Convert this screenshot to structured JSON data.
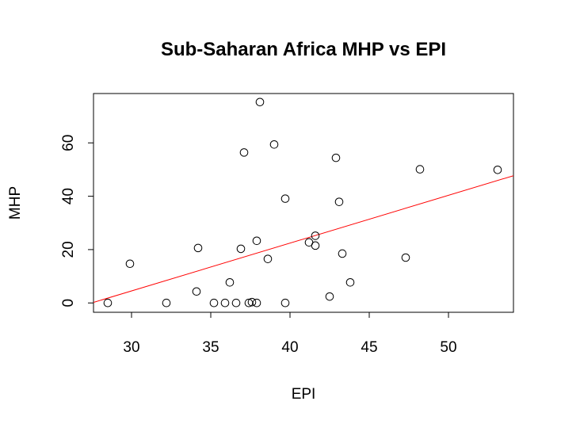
{
  "chart_data": {
    "type": "scatter",
    "title": "Sub-Saharan Africa MHP vs EPI",
    "xlabel": "EPI",
    "ylabel": "MHP",
    "xlim": [
      27.6,
      54.1
    ],
    "ylim": [
      -3.5,
      78.5
    ],
    "x_ticks": [
      "30",
      "35",
      "40",
      "45",
      "50"
    ],
    "y_ticks": [
      "0",
      "20",
      "40",
      "60"
    ],
    "grid": false,
    "points": [
      {
        "x": 28.5,
        "y": 0
      },
      {
        "x": 29.9,
        "y": 14.7
      },
      {
        "x": 32.2,
        "y": 0
      },
      {
        "x": 34.1,
        "y": 4.3
      },
      {
        "x": 34.2,
        "y": 20.6
      },
      {
        "x": 35.2,
        "y": 0
      },
      {
        "x": 35.9,
        "y": 0
      },
      {
        "x": 36.2,
        "y": 7.7
      },
      {
        "x": 36.6,
        "y": 0
      },
      {
        "x": 36.9,
        "y": 20.3
      },
      {
        "x": 37.1,
        "y": 56.4
      },
      {
        "x": 37.4,
        "y": 0
      },
      {
        "x": 37.6,
        "y": 0.3
      },
      {
        "x": 37.9,
        "y": 0
      },
      {
        "x": 37.9,
        "y": 23.3
      },
      {
        "x": 38.1,
        "y": 75.3
      },
      {
        "x": 38.6,
        "y": 16.5
      },
      {
        "x": 39.0,
        "y": 59.4
      },
      {
        "x": 39.7,
        "y": 0
      },
      {
        "x": 39.7,
        "y": 39.1
      },
      {
        "x": 41.2,
        "y": 22.7
      },
      {
        "x": 41.6,
        "y": 21.5
      },
      {
        "x": 41.6,
        "y": 25.2
      },
      {
        "x": 42.5,
        "y": 2.4
      },
      {
        "x": 42.9,
        "y": 54.4
      },
      {
        "x": 43.1,
        "y": 37.9
      },
      {
        "x": 43.3,
        "y": 18.5
      },
      {
        "x": 43.8,
        "y": 7.7
      },
      {
        "x": 47.3,
        "y": 17.0
      },
      {
        "x": 48.2,
        "y": 50.1
      },
      {
        "x": 53.1,
        "y": 49.9
      }
    ],
    "fit_line": {
      "x": [
        27.6,
        54.1
      ],
      "y": [
        0.2,
        47.7
      ],
      "color": "#ff0000"
    },
    "point_color": "#000000"
  }
}
